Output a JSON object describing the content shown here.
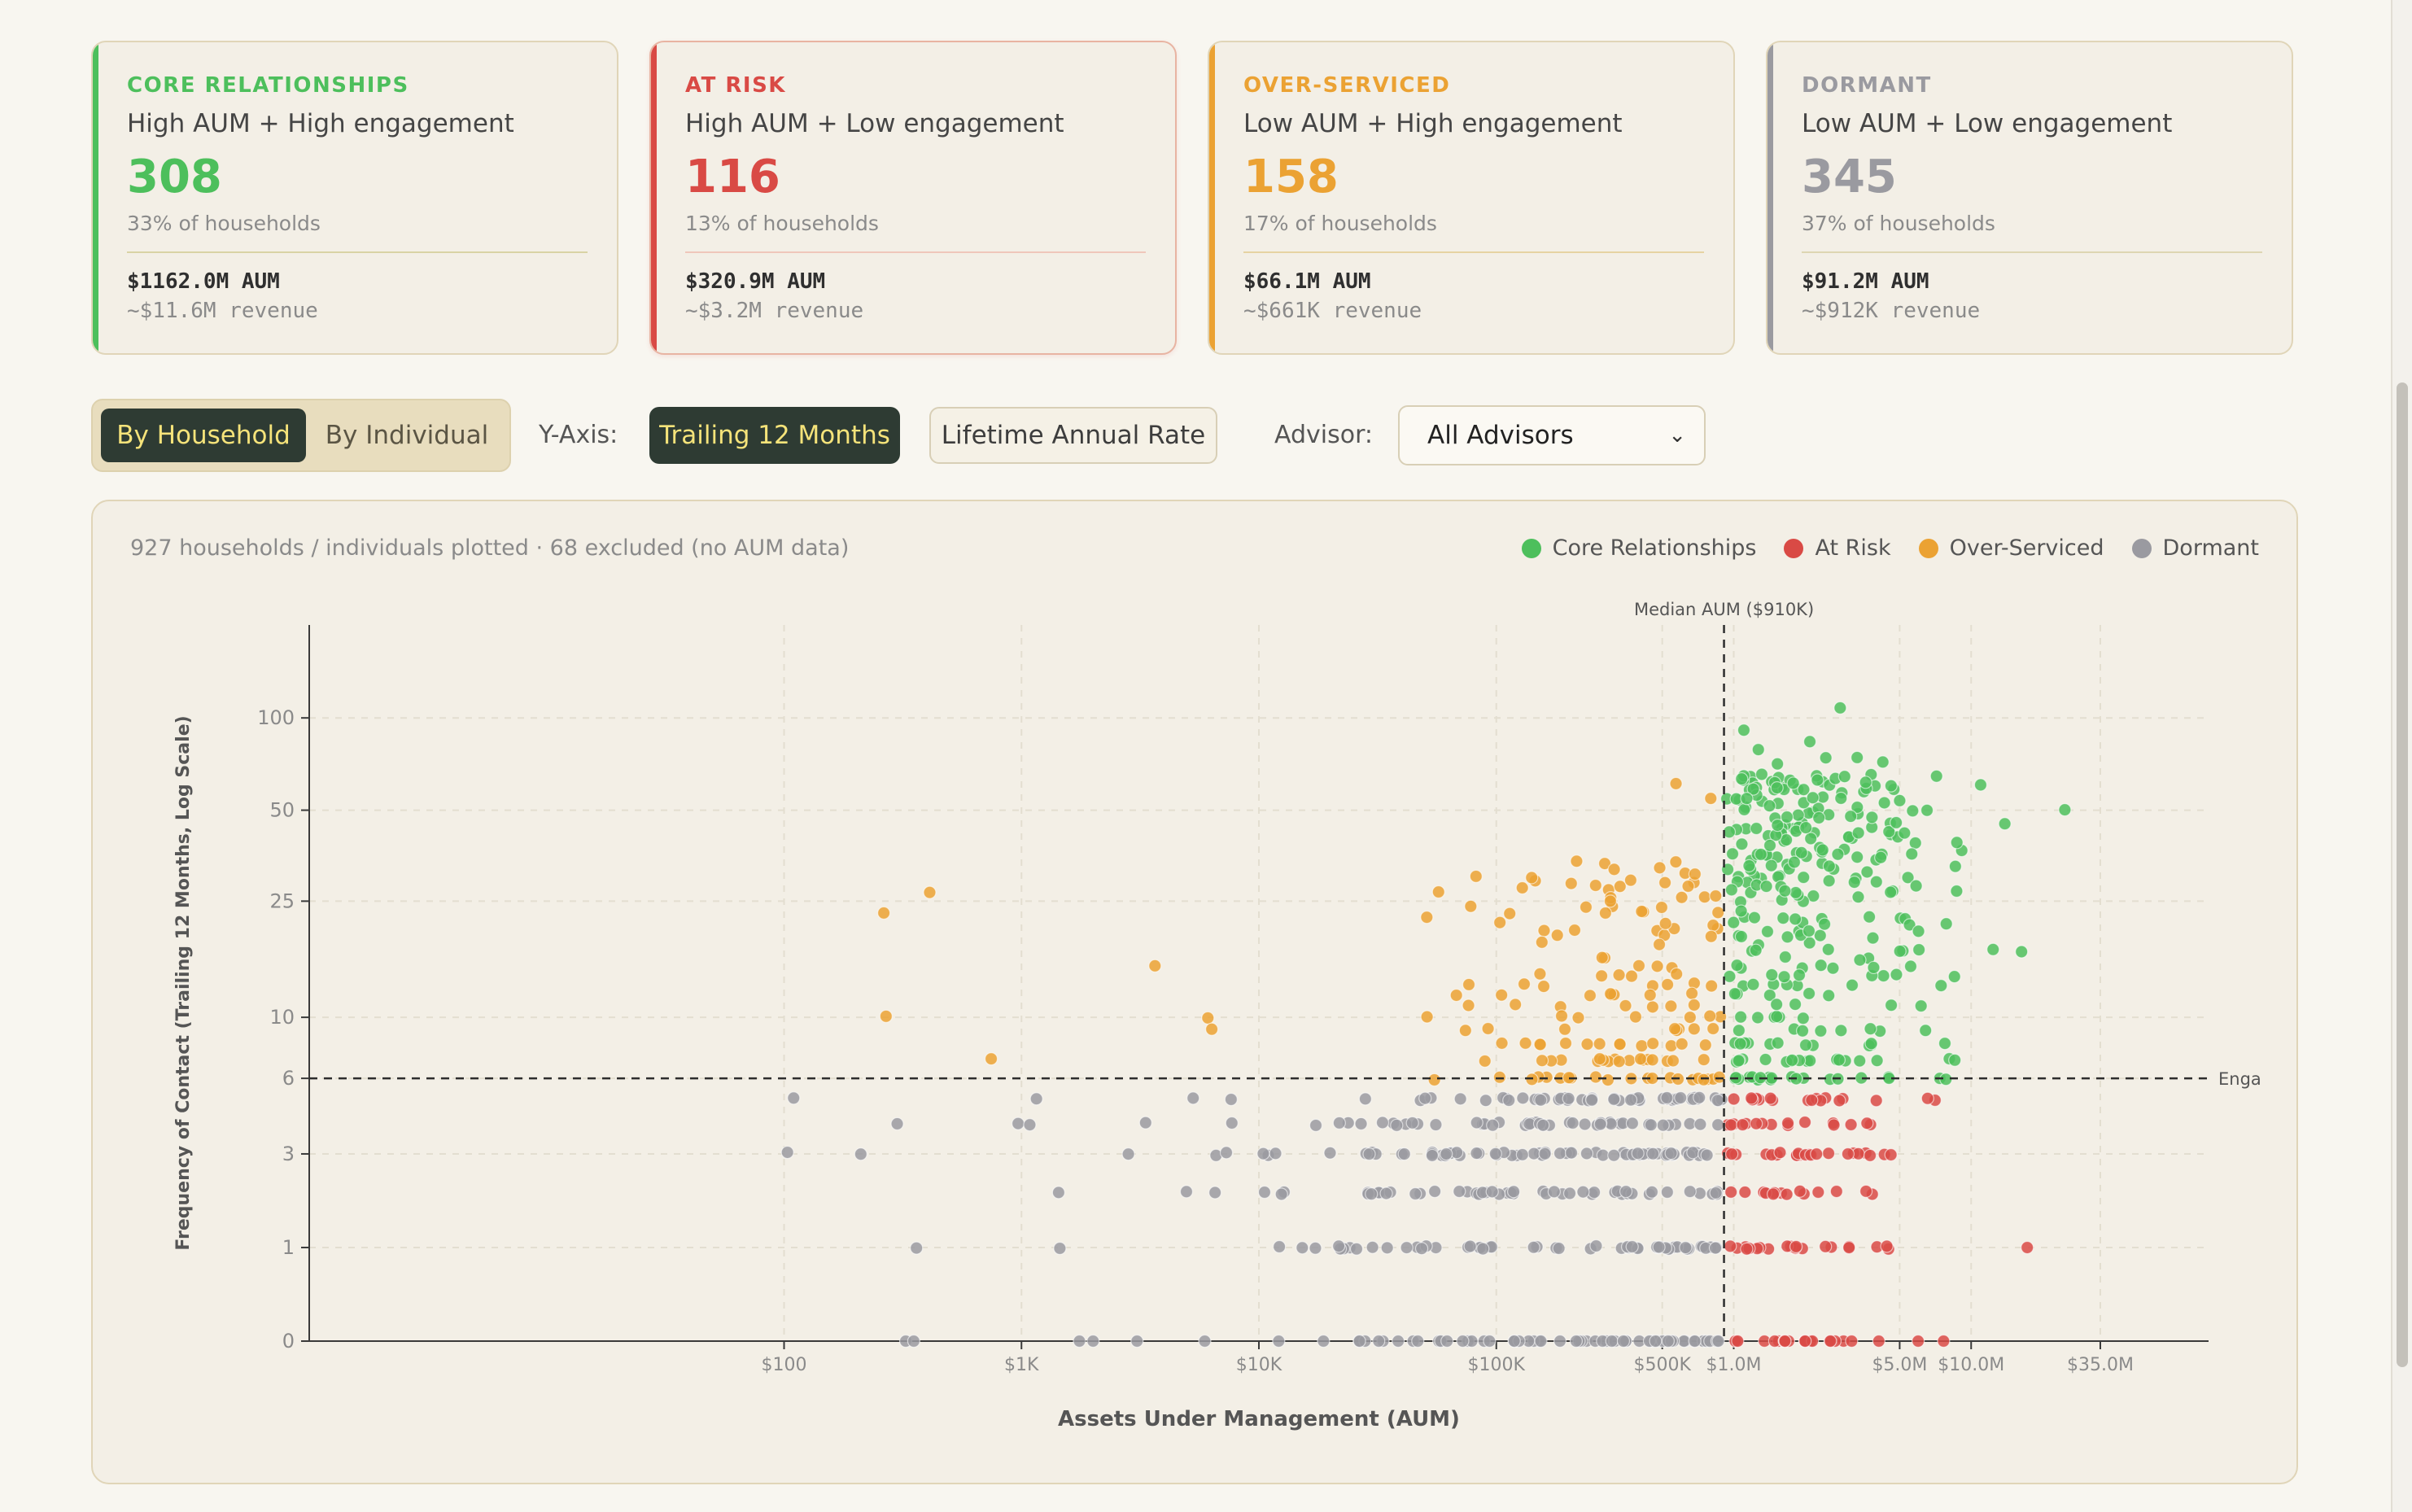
{
  "colors": {
    "core": "#4dbf5c",
    "at_risk": "#d94a45",
    "over_serviced": "#eba233",
    "dormant": "#9a9aa0",
    "dark_button": "#2e3b33",
    "button_text_active": "#f5e37a"
  },
  "segments": [
    {
      "key": "core",
      "label": "CORE RELATIONSHIPS",
      "description": "High AUM + High engagement",
      "count": "308",
      "share": "33% of households",
      "aum": "$1162.0M AUM",
      "revenue": "~$11.6M revenue"
    },
    {
      "key": "at_risk",
      "label": "AT RISK",
      "description": "High AUM + Low engagement",
      "count": "116",
      "share": "13% of households",
      "aum": "$320.9M AUM",
      "revenue": "~$3.2M revenue"
    },
    {
      "key": "over_serviced",
      "label": "OVER-SERVICED",
      "description": "Low AUM + High engagement",
      "count": "158",
      "share": "17% of households",
      "aum": "$66.1M AUM",
      "revenue": "~$661K revenue"
    },
    {
      "key": "dormant",
      "label": "DORMANT",
      "description": "Low AUM + Low engagement",
      "count": "345",
      "share": "37% of households",
      "aum": "$91.2M AUM",
      "revenue": "~$912K revenue"
    }
  ],
  "controls": {
    "view_toggle": {
      "options": [
        "By Household",
        "By Individual"
      ],
      "selected": "By Household"
    },
    "y_axis_label": "Y-Axis:",
    "y_axis_options": [
      "Trailing 12 Months",
      "Lifetime Annual Rate"
    ],
    "y_axis_selected": "Trailing 12 Months",
    "advisor_label": "Advisor:",
    "advisor_selected": "All Advisors"
  },
  "plot_info": "927 households / individuals plotted · 68 excluded (no AUM data)",
  "chart_data": {
    "type": "scatter",
    "x_scale": "log",
    "y_scale": "log(1+y)",
    "xlabel": "Assets Under Management (AUM)",
    "ylabel": "Frequency of Contact (Trailing 12 Months, Log Scale)",
    "x_ticks": [
      {
        "value": 100,
        "label": "$100"
      },
      {
        "value": 1000,
        "label": "$1K"
      },
      {
        "value": 10000,
        "label": "$10K"
      },
      {
        "value": 100000,
        "label": "$100K"
      },
      {
        "value": 500000,
        "label": "$500K"
      },
      {
        "value": 1000000,
        "label": "$1.0M"
      },
      {
        "value": 5000000,
        "label": "$5.0M"
      },
      {
        "value": 10000000,
        "label": "$10.0M"
      },
      {
        "value": 35000000,
        "label": "$35.0M"
      }
    ],
    "y_ticks": [
      {
        "value": 0,
        "label": "0"
      },
      {
        "value": 1,
        "label": "1"
      },
      {
        "value": 3,
        "label": "3"
      },
      {
        "value": 6,
        "label": "6"
      },
      {
        "value": 10,
        "label": "10"
      },
      {
        "value": 25,
        "label": "25"
      },
      {
        "value": 50,
        "label": "50"
      },
      {
        "value": 100,
        "label": "100"
      }
    ],
    "xlim": [
      1,
      100000000
    ],
    "ylim": [
      0,
      200
    ],
    "median_aum": {
      "value": 910000,
      "label": "Median AUM ($910K)"
    },
    "engagement_threshold": {
      "value": 6,
      "label": "Engagement"
    },
    "legend": {
      "placement": "top-right"
    },
    "grid": true,
    "series": [
      {
        "key": "core",
        "name": "Core Relationships",
        "count": 308
      },
      {
        "key": "at_risk",
        "name": "At Risk",
        "count": 116
      },
      {
        "key": "over_serviced",
        "name": "Over-Serviced",
        "count": 158
      },
      {
        "key": "dormant",
        "name": "Dormant",
        "count": 345
      }
    ]
  }
}
